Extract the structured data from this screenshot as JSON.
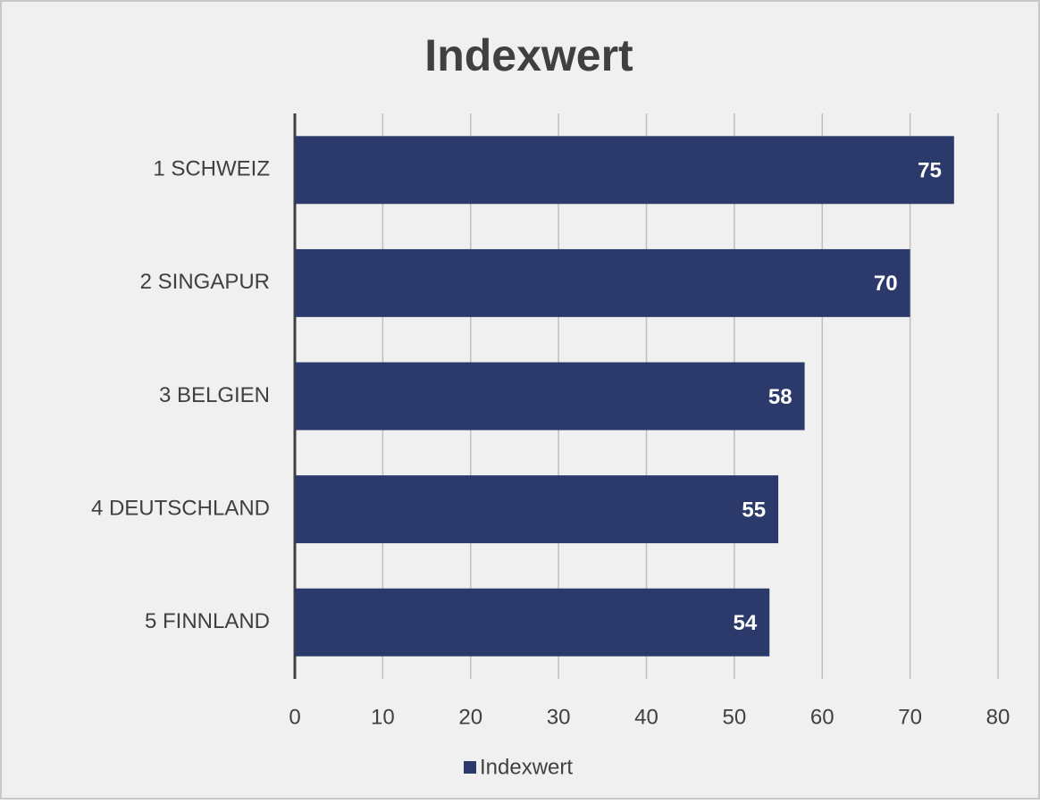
{
  "chart_data": {
    "type": "bar",
    "orientation": "horizontal",
    "title": "Indexwert",
    "categories": [
      "1 SCHWEIZ",
      "2 SINGAPUR",
      "3 BELGIEN",
      "4 DEUTSCHLAND",
      "5 FINNLAND"
    ],
    "series": [
      {
        "name": "Indexwert",
        "color": "#2b3a6b",
        "values": [
          75,
          70,
          58,
          55,
          54
        ]
      }
    ],
    "xlim": [
      0,
      80
    ],
    "xticks": [
      0,
      10,
      20,
      30,
      40,
      50,
      60,
      70,
      80
    ],
    "grid": true,
    "legend": "bottom"
  }
}
